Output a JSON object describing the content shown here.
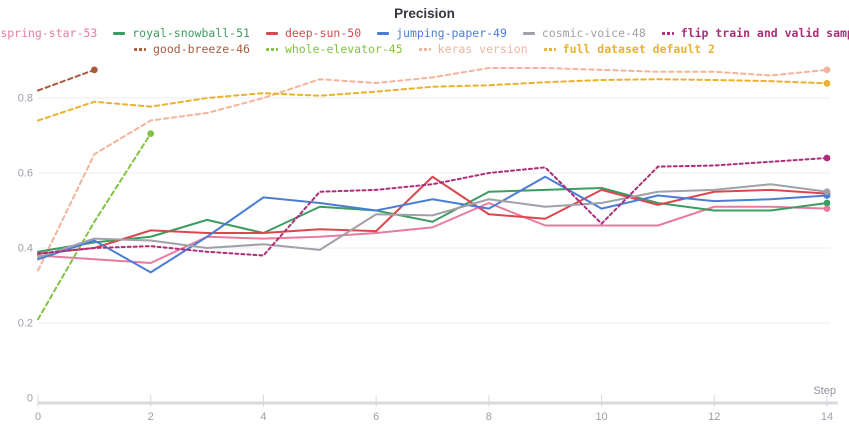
{
  "chart_data": {
    "type": "line",
    "title": "Precision",
    "xlabel": "Step",
    "ylabel": "",
    "xlim": [
      0,
      14
    ],
    "x_ticks": [
      0,
      2,
      4,
      6,
      8,
      10,
      12,
      14
    ],
    "y_tick_values": [
      0,
      0.2,
      0.4,
      0.6,
      0.8
    ],
    "y_tick_labels": [
      "0",
      "0.2",
      "0.4",
      "0.6",
      "0.8"
    ],
    "grid": "horizontal-only",
    "legend_position": "top",
    "legend_rows": [
      [
        "spring-star-53",
        "royal-snowball-51",
        "deep-sun-50",
        "jumping-paper-49",
        "cosmic-voice-48",
        "flip train and valid sample"
      ],
      [
        "good-breeze-46",
        "whole-elevator-45",
        "keras version",
        "full dataset default 2"
      ]
    ],
    "series": [
      {
        "name": "spring-star-53",
        "color": "#e87b9e",
        "style": "solid",
        "bold": false,
        "z": 5,
        "x": [
          0,
          1,
          2,
          3,
          4,
          5,
          6,
          7,
          8,
          9,
          10,
          11,
          12,
          13,
          14
        ],
        "values": [
          0.38,
          0.37,
          0.36,
          0.43,
          0.425,
          0.43,
          0.44,
          0.455,
          0.52,
          0.46,
          0.46,
          0.46,
          0.51,
          0.51,
          0.505
        ]
      },
      {
        "name": "royal-snowball-51",
        "color": "#3d9c61",
        "style": "solid",
        "bold": false,
        "z": 6,
        "x": [
          0,
          1,
          2,
          3,
          4,
          5,
          6,
          7,
          8,
          9,
          10,
          11,
          12,
          13,
          14
        ],
        "values": [
          0.39,
          0.415,
          0.43,
          0.475,
          0.44,
          0.51,
          0.5,
          0.47,
          0.55,
          0.555,
          0.56,
          0.52,
          0.5,
          0.5,
          0.52
        ]
      },
      {
        "name": "deep-sun-50",
        "color": "#d9484e",
        "style": "solid",
        "bold": false,
        "z": 7,
        "x": [
          0,
          1,
          2,
          3,
          4,
          5,
          6,
          7,
          8,
          9,
          10,
          11,
          12,
          13,
          14
        ],
        "values": [
          0.385,
          0.4,
          0.447,
          0.44,
          0.44,
          0.45,
          0.445,
          0.59,
          0.49,
          0.478,
          0.555,
          0.515,
          0.55,
          0.555,
          0.545
        ]
      },
      {
        "name": "jumping-paper-49",
        "color": "#4a7dd6",
        "style": "solid",
        "bold": false,
        "z": 8,
        "x": [
          0,
          1,
          2,
          3,
          4,
          5,
          6,
          7,
          8,
          9,
          10,
          11,
          12,
          13,
          14
        ],
        "values": [
          0.37,
          0.42,
          0.335,
          0.43,
          0.535,
          0.52,
          0.5,
          0.53,
          0.505,
          0.59,
          0.505,
          0.54,
          0.525,
          0.53,
          0.54
        ]
      },
      {
        "name": "cosmic-voice-48",
        "color": "#a0a0a8",
        "style": "solid",
        "bold": false,
        "z": 9,
        "x": [
          0,
          1,
          2,
          3,
          4,
          5,
          6,
          7,
          8,
          9,
          10,
          11,
          12,
          13,
          14
        ],
        "values": [
          0.375,
          0.425,
          0.42,
          0.4,
          0.41,
          0.395,
          0.49,
          0.487,
          0.53,
          0.51,
          0.52,
          0.55,
          0.555,
          0.57,
          0.55
        ]
      },
      {
        "name": "flip train and valid sample",
        "color": "#ad2e78",
        "style": "dashed",
        "bold": true,
        "z": 10,
        "x": [
          0,
          1,
          2,
          3,
          4,
          5,
          6,
          7,
          8,
          9,
          10,
          11,
          12,
          13,
          14
        ],
        "values": [
          0.385,
          0.4,
          0.405,
          0.39,
          0.38,
          0.55,
          0.555,
          0.57,
          0.6,
          0.615,
          0.465,
          0.617,
          0.62,
          0.63,
          0.64
        ]
      },
      {
        "name": "good-breeze-46",
        "color": "#a85c3c",
        "style": "dashed",
        "bold": false,
        "z": 4,
        "x": [
          0,
          1
        ],
        "values": [
          0.82,
          0.875
        ]
      },
      {
        "name": "whole-elevator-45",
        "color": "#82c341",
        "style": "dashed",
        "bold": false,
        "z": 3,
        "x": [
          0,
          1,
          2
        ],
        "values": [
          0.21,
          0.47,
          0.705
        ]
      },
      {
        "name": "keras version",
        "color": "#f3b49c",
        "style": "dashed",
        "bold": false,
        "z": 1,
        "x": [
          0,
          1,
          2,
          3,
          4,
          5,
          6,
          7,
          8,
          9,
          10,
          11,
          12,
          13,
          14
        ],
        "values": [
          0.34,
          0.65,
          0.74,
          0.76,
          0.8,
          0.85,
          0.84,
          0.855,
          0.88,
          0.88,
          0.875,
          0.87,
          0.87,
          0.86,
          0.875
        ]
      },
      {
        "name": "full dataset default 2",
        "color": "#eab22f",
        "style": "dashed",
        "bold": true,
        "z": 2,
        "x": [
          0,
          1,
          2,
          3,
          4,
          5,
          6,
          7,
          8,
          9,
          10,
          11,
          12,
          13,
          14
        ],
        "values": [
          0.74,
          0.79,
          0.777,
          0.8,
          0.813,
          0.806,
          0.817,
          0.83,
          0.834,
          0.842,
          0.848,
          0.85,
          0.848,
          0.845,
          0.839
        ]
      }
    ],
    "layout_colors": {
      "gridline": "#ededf0",
      "axis_line": "#d9dadd",
      "tick_label": "#9ba0a8",
      "axis_title": "#8e939b",
      "title": "#37373d"
    }
  }
}
